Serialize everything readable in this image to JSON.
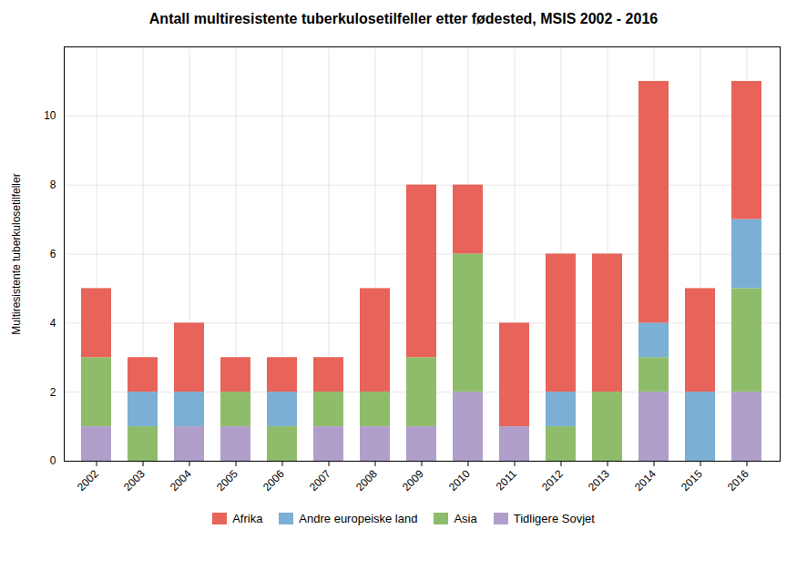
{
  "chart_data": {
    "type": "bar",
    "stacked": true,
    "title": "Antall multiresistente tuberkulosetilfeller etter fødested, MSIS 2002 - 2016",
    "ylabel": "Multiresistente tuberkulosetilfeller",
    "categories": [
      "2002",
      "2003",
      "2004",
      "2005",
      "2006",
      "2007",
      "2008",
      "2009",
      "2010",
      "2011",
      "2012",
      "2013",
      "2014",
      "2015",
      "2016"
    ],
    "series": [
      {
        "name": "Tidligere Sovjet",
        "color": "#B09FCA",
        "values": [
          1,
          0,
          1,
          1,
          0,
          1,
          1,
          1,
          2,
          1,
          0,
          0,
          2,
          0,
          2
        ]
      },
      {
        "name": "Asia",
        "color": "#8FBC6A",
        "values": [
          2,
          1,
          0,
          1,
          1,
          1,
          1,
          2,
          4,
          0,
          1,
          2,
          1,
          0,
          3
        ]
      },
      {
        "name": "Andre europeiske land",
        "color": "#7BAFD4",
        "values": [
          0,
          1,
          1,
          0,
          1,
          0,
          0,
          0,
          0,
          0,
          1,
          0,
          1,
          2,
          2
        ]
      },
      {
        "name": "Afrika",
        "color": "#E8635A",
        "values": [
          2,
          1,
          2,
          1,
          1,
          1,
          3,
          5,
          2,
          3,
          4,
          4,
          7,
          3,
          4
        ]
      }
    ],
    "ylim": [
      0,
      12
    ],
    "yticks": [
      0,
      2,
      4,
      6,
      8,
      10
    ],
    "grid": true,
    "legend": "bottom"
  }
}
